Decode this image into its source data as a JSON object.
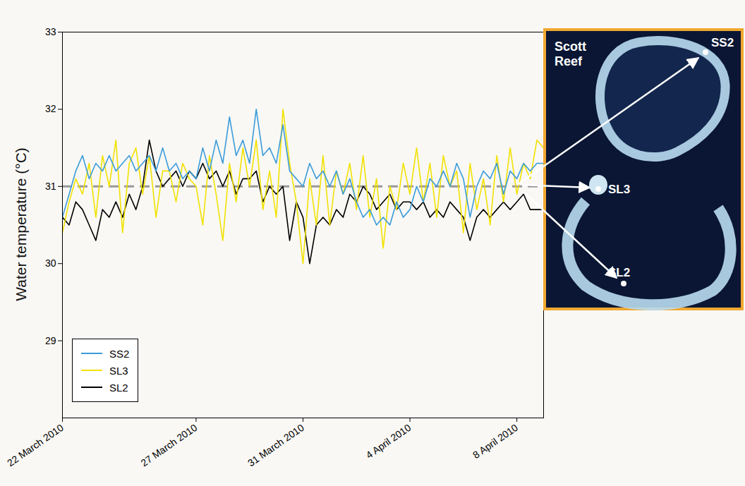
{
  "chart_data": {
    "type": "line",
    "y_label": "Water temperature (°C)",
    "x": [
      "2010-03-22T00:00",
      "2010-03-22T06:00",
      "2010-03-22T12:00",
      "2010-03-22T18:00",
      "2010-03-23T00:00",
      "2010-03-23T06:00",
      "2010-03-23T12:00",
      "2010-03-23T18:00",
      "2010-03-24T00:00",
      "2010-03-24T06:00",
      "2010-03-24T12:00",
      "2010-03-24T18:00",
      "2010-03-25T00:00",
      "2010-03-25T06:00",
      "2010-03-25T12:00",
      "2010-03-25T18:00",
      "2010-03-26T00:00",
      "2010-03-26T06:00",
      "2010-03-26T12:00",
      "2010-03-26T18:00",
      "2010-03-27T00:00",
      "2010-03-27T06:00",
      "2010-03-27T12:00",
      "2010-03-27T18:00",
      "2010-03-28T00:00",
      "2010-03-28T06:00",
      "2010-03-28T12:00",
      "2010-03-28T18:00",
      "2010-03-29T00:00",
      "2010-03-29T06:00",
      "2010-03-29T12:00",
      "2010-03-29T18:00",
      "2010-03-30T00:00",
      "2010-03-30T06:00",
      "2010-03-30T12:00",
      "2010-03-30T18:00",
      "2010-03-31T00:00",
      "2010-03-31T06:00",
      "2010-03-31T12:00",
      "2010-03-31T18:00",
      "2010-04-01T00:00",
      "2010-04-01T06:00",
      "2010-04-01T12:00",
      "2010-04-01T18:00",
      "2010-04-02T00:00",
      "2010-04-02T06:00",
      "2010-04-02T12:00",
      "2010-04-02T18:00",
      "2010-04-03T00:00",
      "2010-04-03T06:00",
      "2010-04-03T12:00",
      "2010-04-03T18:00",
      "2010-04-04T00:00",
      "2010-04-04T06:00",
      "2010-04-04T12:00",
      "2010-04-04T18:00",
      "2010-04-05T00:00",
      "2010-04-05T06:00",
      "2010-04-05T12:00",
      "2010-04-05T18:00",
      "2010-04-06T00:00",
      "2010-04-06T06:00",
      "2010-04-06T12:00",
      "2010-04-06T18:00",
      "2010-04-07T00:00",
      "2010-04-07T06:00",
      "2010-04-07T12:00",
      "2010-04-07T18:00",
      "2010-04-08T00:00",
      "2010-04-08T06:00",
      "2010-04-08T12:00",
      "2010-04-08T18:00",
      "2010-04-09T00:00"
    ],
    "series": [
      {
        "name": "SS2",
        "color": "#3a9bd9",
        "values": [
          30.6,
          30.9,
          31.2,
          31.4,
          31.1,
          31.3,
          31.2,
          31.4,
          31.2,
          31.3,
          31.4,
          31.2,
          31.3,
          31.4,
          31.2,
          31.5,
          31.2,
          31.3,
          31.1,
          31.2,
          31.1,
          31.5,
          31.2,
          31.6,
          31.3,
          31.9,
          31.4,
          31.6,
          31.3,
          32.0,
          31.4,
          31.5,
          31.3,
          31.8,
          31.2,
          31.1,
          31.0,
          31.3,
          31.1,
          31.2,
          31.0,
          31.2,
          30.9,
          31.1,
          30.8,
          30.6,
          30.7,
          30.5,
          30.6,
          30.5,
          30.8,
          30.6,
          30.7,
          31.0,
          30.8,
          31.1,
          31.0,
          31.2,
          31.0,
          31.3,
          31.1,
          30.6,
          31.0,
          31.2,
          31.1,
          31.3,
          30.9,
          31.2,
          31.1,
          31.3,
          31.2,
          31.3,
          31.3
        ]
      },
      {
        "name": "SL3",
        "color": "#f2e200",
        "values": [
          30.4,
          30.8,
          31.1,
          30.9,
          31.3,
          30.6,
          31.4,
          31.0,
          31.6,
          30.4,
          31.3,
          31.5,
          30.9,
          31.4,
          30.6,
          31.2,
          31.2,
          30.8,
          31.3,
          31.1,
          31.0,
          30.5,
          31.4,
          30.9,
          30.3,
          31.3,
          30.8,
          31.5,
          31.0,
          31.6,
          30.7,
          31.2,
          30.6,
          32.0,
          31.3,
          30.8,
          30.0,
          31.1,
          30.5,
          31.4,
          30.5,
          31.2,
          30.9,
          31.3,
          30.7,
          31.4,
          30.6,
          31.1,
          30.2,
          31.0,
          30.7,
          31.3,
          30.9,
          31.5,
          30.8,
          31.3,
          30.6,
          31.4,
          31.0,
          31.2,
          30.4,
          31.3,
          30.7,
          31.1,
          30.5,
          31.4,
          30.8,
          31.5,
          30.9,
          31.3,
          31.1,
          31.6,
          31.5
        ]
      },
      {
        "name": "SL2",
        "color": "#000000",
        "values": [
          30.6,
          30.5,
          30.8,
          30.7,
          30.5,
          30.3,
          30.7,
          30.6,
          30.8,
          30.6,
          30.9,
          30.7,
          31.0,
          31.6,
          31.2,
          31.0,
          31.1,
          31.2,
          31.0,
          31.2,
          31.1,
          31.3,
          31.1,
          31.2,
          31.0,
          31.2,
          30.9,
          31.1,
          31.1,
          31.2,
          30.8,
          31.0,
          30.9,
          31.0,
          30.3,
          30.8,
          30.6,
          30.0,
          30.5,
          30.6,
          30.5,
          30.7,
          30.6,
          30.9,
          30.8,
          31.0,
          30.9,
          30.7,
          30.8,
          30.9,
          30.7,
          30.8,
          30.8,
          30.7,
          30.8,
          30.6,
          30.7,
          30.6,
          30.8,
          30.7,
          30.6,
          30.3,
          30.6,
          30.7,
          30.6,
          30.7,
          30.8,
          30.7,
          30.8,
          30.9,
          30.7,
          30.7,
          30.7
        ]
      }
    ],
    "xlim": [
      "2010-03-22T00:00",
      "2010-04-09T00:00"
    ],
    "xticks": [
      {
        "value": "2010-03-22T00:00",
        "label": "22 March 2010"
      },
      {
        "value": "2010-03-27T00:00",
        "label": "27 March 2010"
      },
      {
        "value": "2010-03-31T00:00",
        "label": "31 March 2010"
      },
      {
        "value": "2010-04-04T00:00",
        "label": "4 April 2010"
      },
      {
        "value": "2010-04-08T00:00",
        "label": "8 April 2010"
      }
    ],
    "ylim": [
      28,
      33
    ],
    "yticks": [
      29,
      30,
      31,
      32,
      33
    ],
    "reference_lines": [
      {
        "y": 31,
        "color": "#999999",
        "line_style": "dashed"
      }
    ],
    "grid": false,
    "legend": "bottom-left"
  },
  "map": {
    "title": "Scott Reef",
    "sites": [
      "SS2",
      "SL3",
      "SL2"
    ]
  }
}
